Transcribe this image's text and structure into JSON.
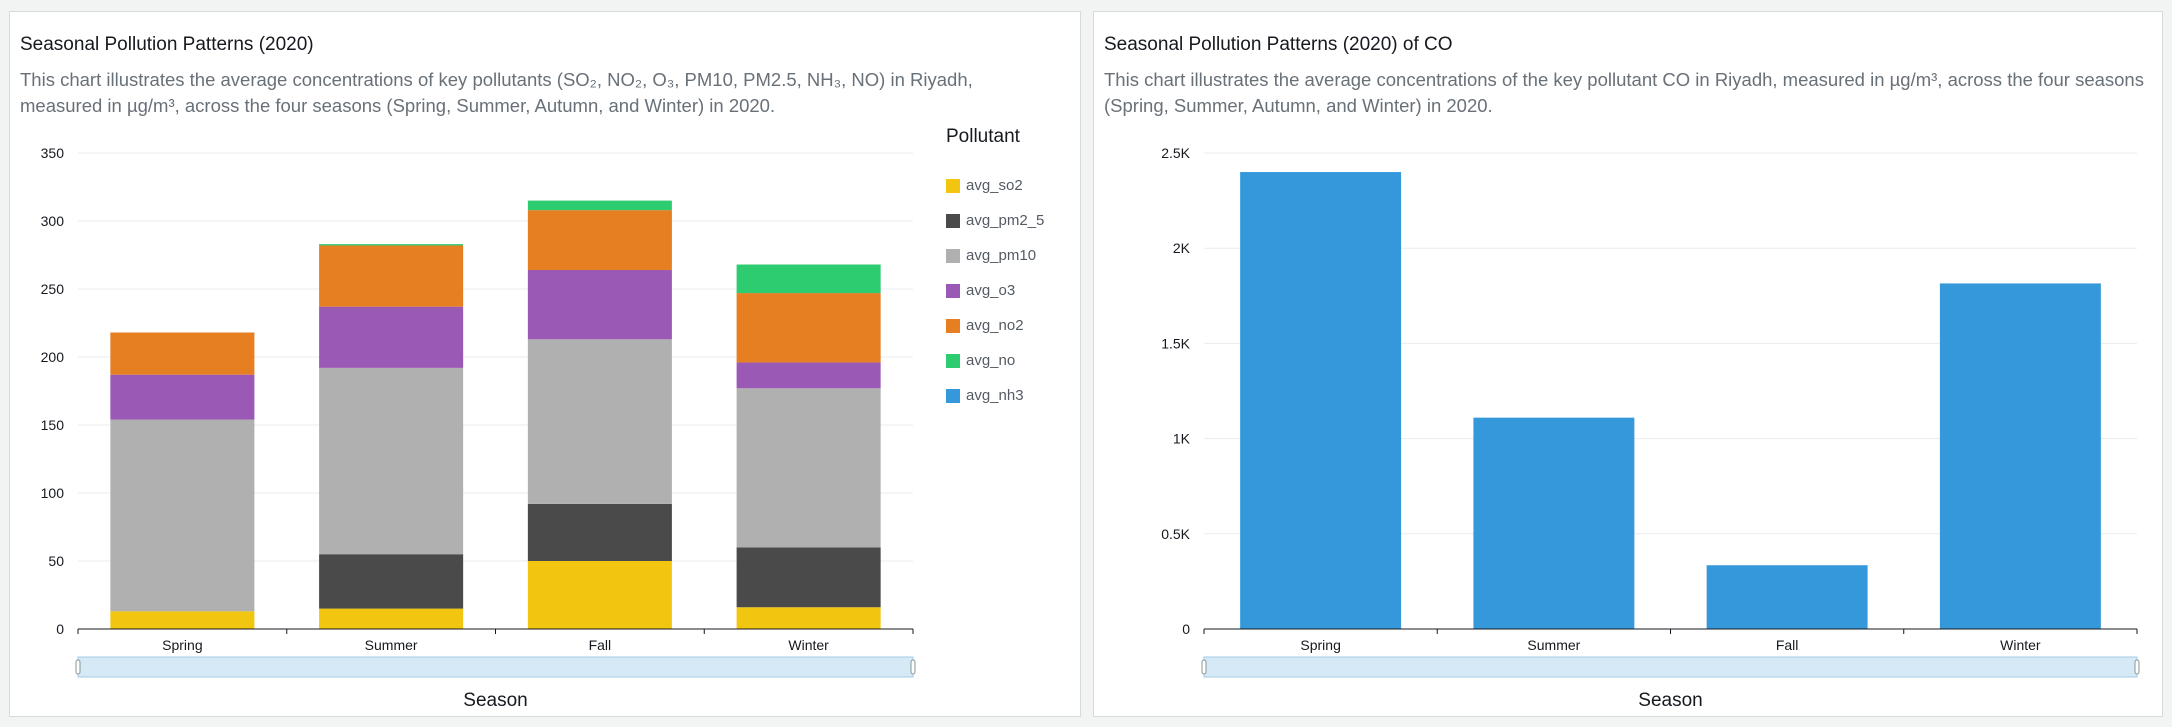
{
  "left_panel": {
    "title": "Seasonal Pollution Patterns (2020)",
    "description": "This chart illustrates the average concentrations of key pollutants (SO₂, NO₂, O₃, PM10, PM2.5, NH₃, NO) in Riyadh, measured in µg/m³, across the four seasons (Spring, Summer, Autumn, and Winter) in 2020.",
    "legend_title": "Pollutant",
    "x_axis_title": "Season"
  },
  "right_panel": {
    "title": "Seasonal Pollution Patterns (2020) of CO",
    "description": "This chart illustrates the average concentrations of the key pollutant CO in Riyadh, measured in µg/m³, across the four seasons (Spring, Summer, Autumn, and Winter) in 2020.",
    "x_axis_title": "Season"
  },
  "chart_data": [
    {
      "type": "bar",
      "stacked": true,
      "categories": [
        "Spring",
        "Summer",
        "Fall",
        "Winter"
      ],
      "ylim": [
        0,
        350
      ],
      "yticks": [
        0,
        50,
        100,
        150,
        200,
        250,
        300,
        350
      ],
      "ytick_labels": [
        "0",
        "50",
        "100",
        "150",
        "200",
        "250",
        "300",
        "350"
      ],
      "xlabel": "Season",
      "legend_title": "Pollutant",
      "legend_position": "right",
      "grid": true,
      "series": [
        {
          "name": "avg_so2",
          "color": "#f2c511",
          "values": [
            13,
            15,
            50,
            16
          ]
        },
        {
          "name": "avg_pm2_5",
          "color": "#4a4a4a",
          "values": [
            0,
            40,
            42,
            44
          ]
        },
        {
          "name": "avg_pm10",
          "color": "#b0b0b0",
          "values": [
            141,
            137,
            121,
            117
          ]
        },
        {
          "name": "avg_o3",
          "color": "#9b59b6",
          "values": [
            33,
            45,
            51,
            19
          ]
        },
        {
          "name": "avg_no2",
          "color": "#e67e22",
          "values": [
            31,
            45,
            44,
            51
          ]
        },
        {
          "name": "avg_no",
          "color": "#2ecc71",
          "values": [
            0,
            1,
            7,
            21
          ]
        },
        {
          "name": "avg_nh3",
          "color": "#3498db",
          "values": [
            0,
            0,
            0,
            0
          ]
        }
      ]
    },
    {
      "type": "bar",
      "categories": [
        "Spring",
        "Summer",
        "Fall",
        "Winter"
      ],
      "values": [
        2400,
        1110,
        335,
        1815
      ],
      "color": "#3498db",
      "ylim": [
        0,
        2500
      ],
      "yticks": [
        0,
        500,
        1000,
        1500,
        2000,
        2500
      ],
      "ytick_labels": [
        "0",
        "0.5K",
        "1K",
        "1.5K",
        "2K",
        "2.5K"
      ],
      "xlabel": "Season",
      "grid": true
    }
  ]
}
